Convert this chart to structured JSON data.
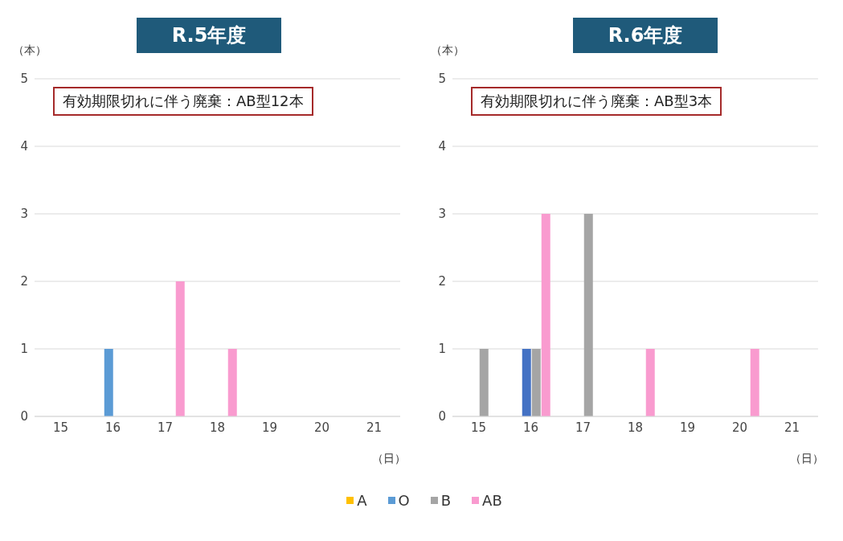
{
  "chart_data": [
    {
      "type": "bar",
      "title": "R.5年度",
      "ylabel": "（本）",
      "xlabel": "（日）",
      "annotations": [
        "有効期限切れに伴う廃棄：AB型12本"
      ],
      "categories": [
        "15",
        "16",
        "17",
        "18",
        "19",
        "20",
        "21"
      ],
      "ylim": [
        0,
        5
      ],
      "yticks": [
        0,
        1,
        2,
        3,
        4,
        5
      ],
      "grid": "y",
      "legend": "bottom",
      "series": [
        {
          "name": "A",
          "color": "#ffc000",
          "values": [
            0,
            0,
            0,
            0,
            0,
            0,
            0
          ]
        },
        {
          "name": "O",
          "color": "#5b9bd5",
          "values": [
            0,
            1,
            0,
            0,
            0,
            0,
            0
          ]
        },
        {
          "name": "B",
          "color": "#a5a5a5",
          "values": [
            0,
            0,
            0,
            0,
            0,
            0,
            0
          ]
        },
        {
          "name": "AB",
          "color": "#f99bcf",
          "values": [
            0,
            0,
            2,
            1,
            0,
            0,
            0
          ]
        }
      ]
    },
    {
      "type": "bar",
      "title": "R.6年度",
      "ylabel": "（本）",
      "xlabel": "（日）",
      "annotations": [
        "有効期限切れに伴う廃棄：AB型3本"
      ],
      "categories": [
        "15",
        "16",
        "17",
        "18",
        "19",
        "20",
        "21"
      ],
      "ylim": [
        0,
        5
      ],
      "yticks": [
        0,
        1,
        2,
        3,
        4,
        5
      ],
      "grid": "y",
      "series": [
        {
          "color": "#ffc000",
          "values": [
            0,
            0,
            0,
            0,
            0,
            0,
            0
          ]
        },
        {
          "color": "#4472c4",
          "values": [
            0,
            1,
            0,
            0,
            0,
            0,
            0
          ]
        },
        {
          "color": "#a5a5a5",
          "values": [
            1,
            1,
            3,
            0,
            0,
            0,
            0
          ]
        },
        {
          "color": "#f99bcf",
          "values": [
            0,
            3,
            0,
            1,
            0,
            1,
            0
          ]
        }
      ]
    }
  ]
}
